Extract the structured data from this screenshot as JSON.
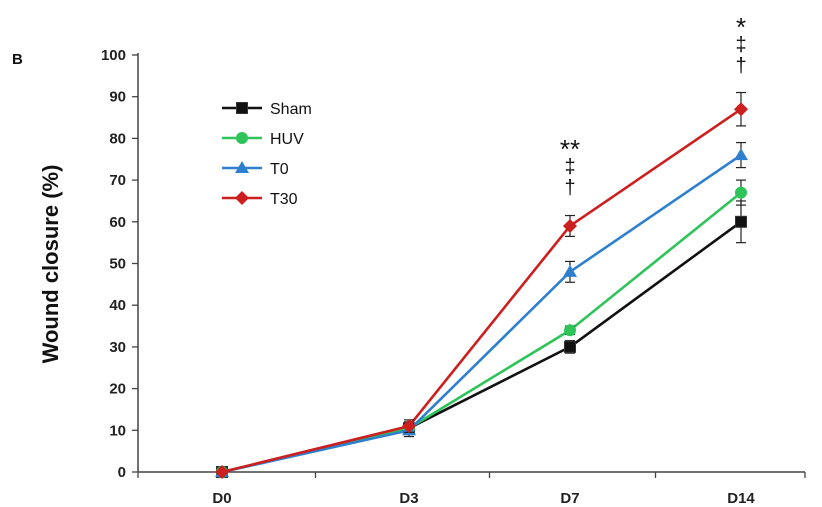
{
  "panel_label": "B",
  "chart_data": {
    "type": "line",
    "title": "",
    "xlabel": "",
    "ylabel": "Wound closure (%)",
    "categories": [
      "D0",
      "D3",
      "D7",
      "D14"
    ],
    "ylim": [
      0,
      100
    ],
    "yticks": [
      "0",
      "10",
      "20",
      "30",
      "40",
      "50",
      "60",
      "70",
      "80",
      "90",
      "100"
    ],
    "grid": false,
    "legend_position": "top-left",
    "series": [
      {
        "name": "Sham",
        "color": "#111111",
        "marker": "square",
        "values": [
          0,
          10.5,
          30,
          60
        ],
        "errors": [
          0,
          1.5,
          1.5,
          5
        ]
      },
      {
        "name": "HUV",
        "color": "#2fc45a",
        "marker": "circle",
        "values": [
          0,
          10.5,
          34,
          67
        ],
        "errors": [
          0,
          1.5,
          1,
          3
        ]
      },
      {
        "name": "T0",
        "color": "#2f7fcf",
        "marker": "triangle",
        "values": [
          0,
          10,
          48,
          76
        ],
        "errors": [
          0,
          1.5,
          2.5,
          3
        ]
      },
      {
        "name": "T30",
        "color": "#cc1f1f",
        "marker": "diamond",
        "values": [
          0,
          11,
          59,
          87
        ],
        "errors": [
          0,
          1.5,
          2.5,
          4
        ]
      }
    ],
    "annotations": [
      {
        "category": "D7",
        "lines": [
          "**",
          "‡",
          "†"
        ]
      },
      {
        "category": "D14",
        "lines": [
          "*",
          "‡",
          "†"
        ]
      }
    ]
  }
}
